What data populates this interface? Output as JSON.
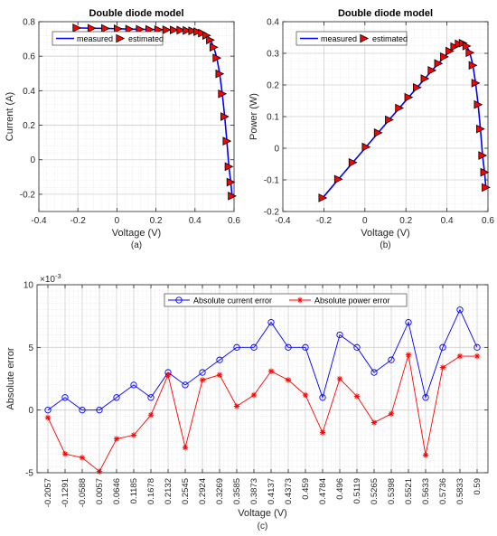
{
  "chart_data": [
    {
      "type": "line",
      "title": "Double diode model",
      "xlabel": "Voltage (V)",
      "ylabel": "Current (A)",
      "caption": "(a)",
      "xlim": [
        -0.4,
        0.6
      ],
      "ylim": [
        -0.3,
        0.8
      ],
      "xticks": [
        -0.4,
        -0.2,
        0,
        0.2,
        0.4,
        0.6
      ],
      "yticks": [
        -0.2,
        0,
        0.2,
        0.4,
        0.6,
        0.8
      ],
      "xtick_labels": [
        "-0.4",
        "-0.2",
        "0",
        "0.2",
        "0.4",
        "0.6"
      ],
      "ytick_labels": [
        "-0.2",
        "0",
        "0.2",
        "0.4",
        "0.6",
        "0.8"
      ],
      "grid": true,
      "legend_position": "top-center",
      "series": [
        {
          "name": "measured",
          "style": "line",
          "color": "#0000ff",
          "x": [
            -0.2057,
            -0.1291,
            -0.0588,
            0.0057,
            0.0646,
            0.1185,
            0.1678,
            0.2132,
            0.2545,
            0.2924,
            0.3269,
            0.3585,
            0.3873,
            0.4137,
            0.4373,
            0.459,
            0.4784,
            0.496,
            0.5119,
            0.5265,
            0.5398,
            0.5521,
            0.5633,
            0.5736,
            0.5833,
            0.59
          ],
          "y": [
            0.764,
            0.762,
            0.761,
            0.759,
            0.757,
            0.756,
            0.755,
            0.754,
            0.753,
            0.752,
            0.751,
            0.749,
            0.747,
            0.742,
            0.734,
            0.72,
            0.694,
            0.652,
            0.59,
            0.498,
            0.382,
            0.25,
            0.108,
            -0.04,
            -0.13,
            -0.21
          ]
        },
        {
          "name": "estimated",
          "style": "marker",
          "marker": "triangle-right",
          "color": "#ff0000",
          "x": [
            -0.2057,
            -0.1291,
            -0.0588,
            0.0057,
            0.0646,
            0.1185,
            0.1678,
            0.2132,
            0.2545,
            0.2924,
            0.3269,
            0.3585,
            0.3873,
            0.4137,
            0.4373,
            0.459,
            0.4784,
            0.496,
            0.5119,
            0.5265,
            0.5398,
            0.5521,
            0.5633,
            0.5736,
            0.5833,
            0.59
          ],
          "y": [
            0.764,
            0.762,
            0.761,
            0.759,
            0.757,
            0.756,
            0.755,
            0.754,
            0.753,
            0.752,
            0.751,
            0.749,
            0.747,
            0.742,
            0.734,
            0.72,
            0.694,
            0.652,
            0.59,
            0.498,
            0.382,
            0.25,
            0.108,
            -0.04,
            -0.13,
            -0.21
          ]
        }
      ]
    },
    {
      "type": "line",
      "title": "Double diode model",
      "xlabel": "Voltage (V)",
      "ylabel": "Power (W)",
      "caption": "(b)",
      "xlim": [
        -0.4,
        0.6
      ],
      "ylim": [
        -0.2,
        0.4
      ],
      "xticks": [
        -0.4,
        -0.2,
        0,
        0.2,
        0.4,
        0.6
      ],
      "yticks": [
        -0.2,
        -0.1,
        0,
        0.1,
        0.2,
        0.3,
        0.4
      ],
      "xtick_labels": [
        "-0.4",
        "-0.2",
        "0",
        "0.2",
        "0.4",
        "0.6"
      ],
      "ytick_labels": [
        "-0.2",
        "-0.1",
        "0",
        "0.1",
        "0.2",
        "0.3",
        "0.4"
      ],
      "grid": true,
      "legend_position": "top-center",
      "series": [
        {
          "name": "measured",
          "style": "line",
          "color": "#0000ff",
          "x": [
            -0.2057,
            -0.1291,
            -0.0588,
            0.0057,
            0.0646,
            0.1185,
            0.1678,
            0.2132,
            0.2545,
            0.2924,
            0.3269,
            0.3585,
            0.3873,
            0.4137,
            0.4373,
            0.459,
            0.4784,
            0.496,
            0.5119,
            0.5265,
            0.5398,
            0.5521,
            0.5633,
            0.5736,
            0.5833,
            0.59
          ],
          "y": [
            -0.157,
            -0.098,
            -0.045,
            0.004,
            0.049,
            0.09,
            0.127,
            0.161,
            0.192,
            0.22,
            0.246,
            0.268,
            0.289,
            0.307,
            0.321,
            0.33,
            0.332,
            0.323,
            0.302,
            0.262,
            0.206,
            0.138,
            0.061,
            -0.023,
            -0.076,
            -0.124
          ]
        },
        {
          "name": "estimated",
          "style": "marker",
          "marker": "triangle-right",
          "color": "#ff0000",
          "x": [
            -0.2057,
            -0.1291,
            -0.0588,
            0.0057,
            0.0646,
            0.1185,
            0.1678,
            0.2132,
            0.2545,
            0.2924,
            0.3269,
            0.3585,
            0.3873,
            0.4137,
            0.4373,
            0.459,
            0.4784,
            0.496,
            0.5119,
            0.5265,
            0.5398,
            0.5521,
            0.5633,
            0.5736,
            0.5833,
            0.59
          ],
          "y": [
            -0.157,
            -0.098,
            -0.045,
            0.004,
            0.049,
            0.09,
            0.127,
            0.161,
            0.192,
            0.22,
            0.246,
            0.268,
            0.289,
            0.307,
            0.321,
            0.33,
            0.332,
            0.323,
            0.302,
            0.262,
            0.206,
            0.138,
            0.061,
            -0.023,
            -0.076,
            -0.124
          ]
        }
      ]
    },
    {
      "type": "line",
      "title": "",
      "xlabel": "Voltage (V)",
      "ylabel": "Absolute error",
      "caption": "(c)",
      "y_multiplier": "×10",
      "y_multiplier_exp": "-3",
      "ylim": [
        -5,
        10
      ],
      "yticks": [
        -5,
        0,
        5,
        10
      ],
      "ytick_labels": [
        "-5",
        "0",
        "5",
        "10"
      ],
      "categories": [
        "-0.2057",
        "-0.1291",
        "-0.0588",
        "0.0057",
        "0.0646",
        "0.1185",
        "0.1678",
        "0.2132",
        "0.2545",
        "0.2924",
        "0.3269",
        "0.3585",
        "0.3873",
        "0.4137",
        "0.4373",
        "0.459",
        "0.4784",
        "0.496",
        "0.5119",
        "0.5265",
        "0.5398",
        "0.5521",
        "0.5633",
        "0.5736",
        "0.5833",
        "0.59"
      ],
      "grid": true,
      "legend_position": "top-center",
      "series": [
        {
          "name": "Absolute current error",
          "marker": "circle",
          "color": "#0000ff",
          "values": [
            0,
            1,
            0,
            0,
            1,
            2,
            1,
            3,
            2,
            3,
            4,
            5,
            5,
            7,
            5,
            5,
            1,
            6,
            5,
            3,
            4,
            7,
            1,
            5,
            8,
            5
          ]
        },
        {
          "name": "Absolute power error",
          "marker": "asterisk",
          "color": "#ff0000",
          "values": [
            -0.6,
            -3.5,
            -3.8,
            -4.9,
            -2.3,
            -2.0,
            -0.4,
            2.8,
            -3.0,
            2.4,
            2.8,
            0.3,
            1.2,
            3.1,
            2.4,
            1.2,
            -1.8,
            2.5,
            1.1,
            -1.0,
            -0.3,
            4.4,
            -3.6,
            3.4,
            4.3,
            4.3
          ]
        }
      ]
    }
  ]
}
